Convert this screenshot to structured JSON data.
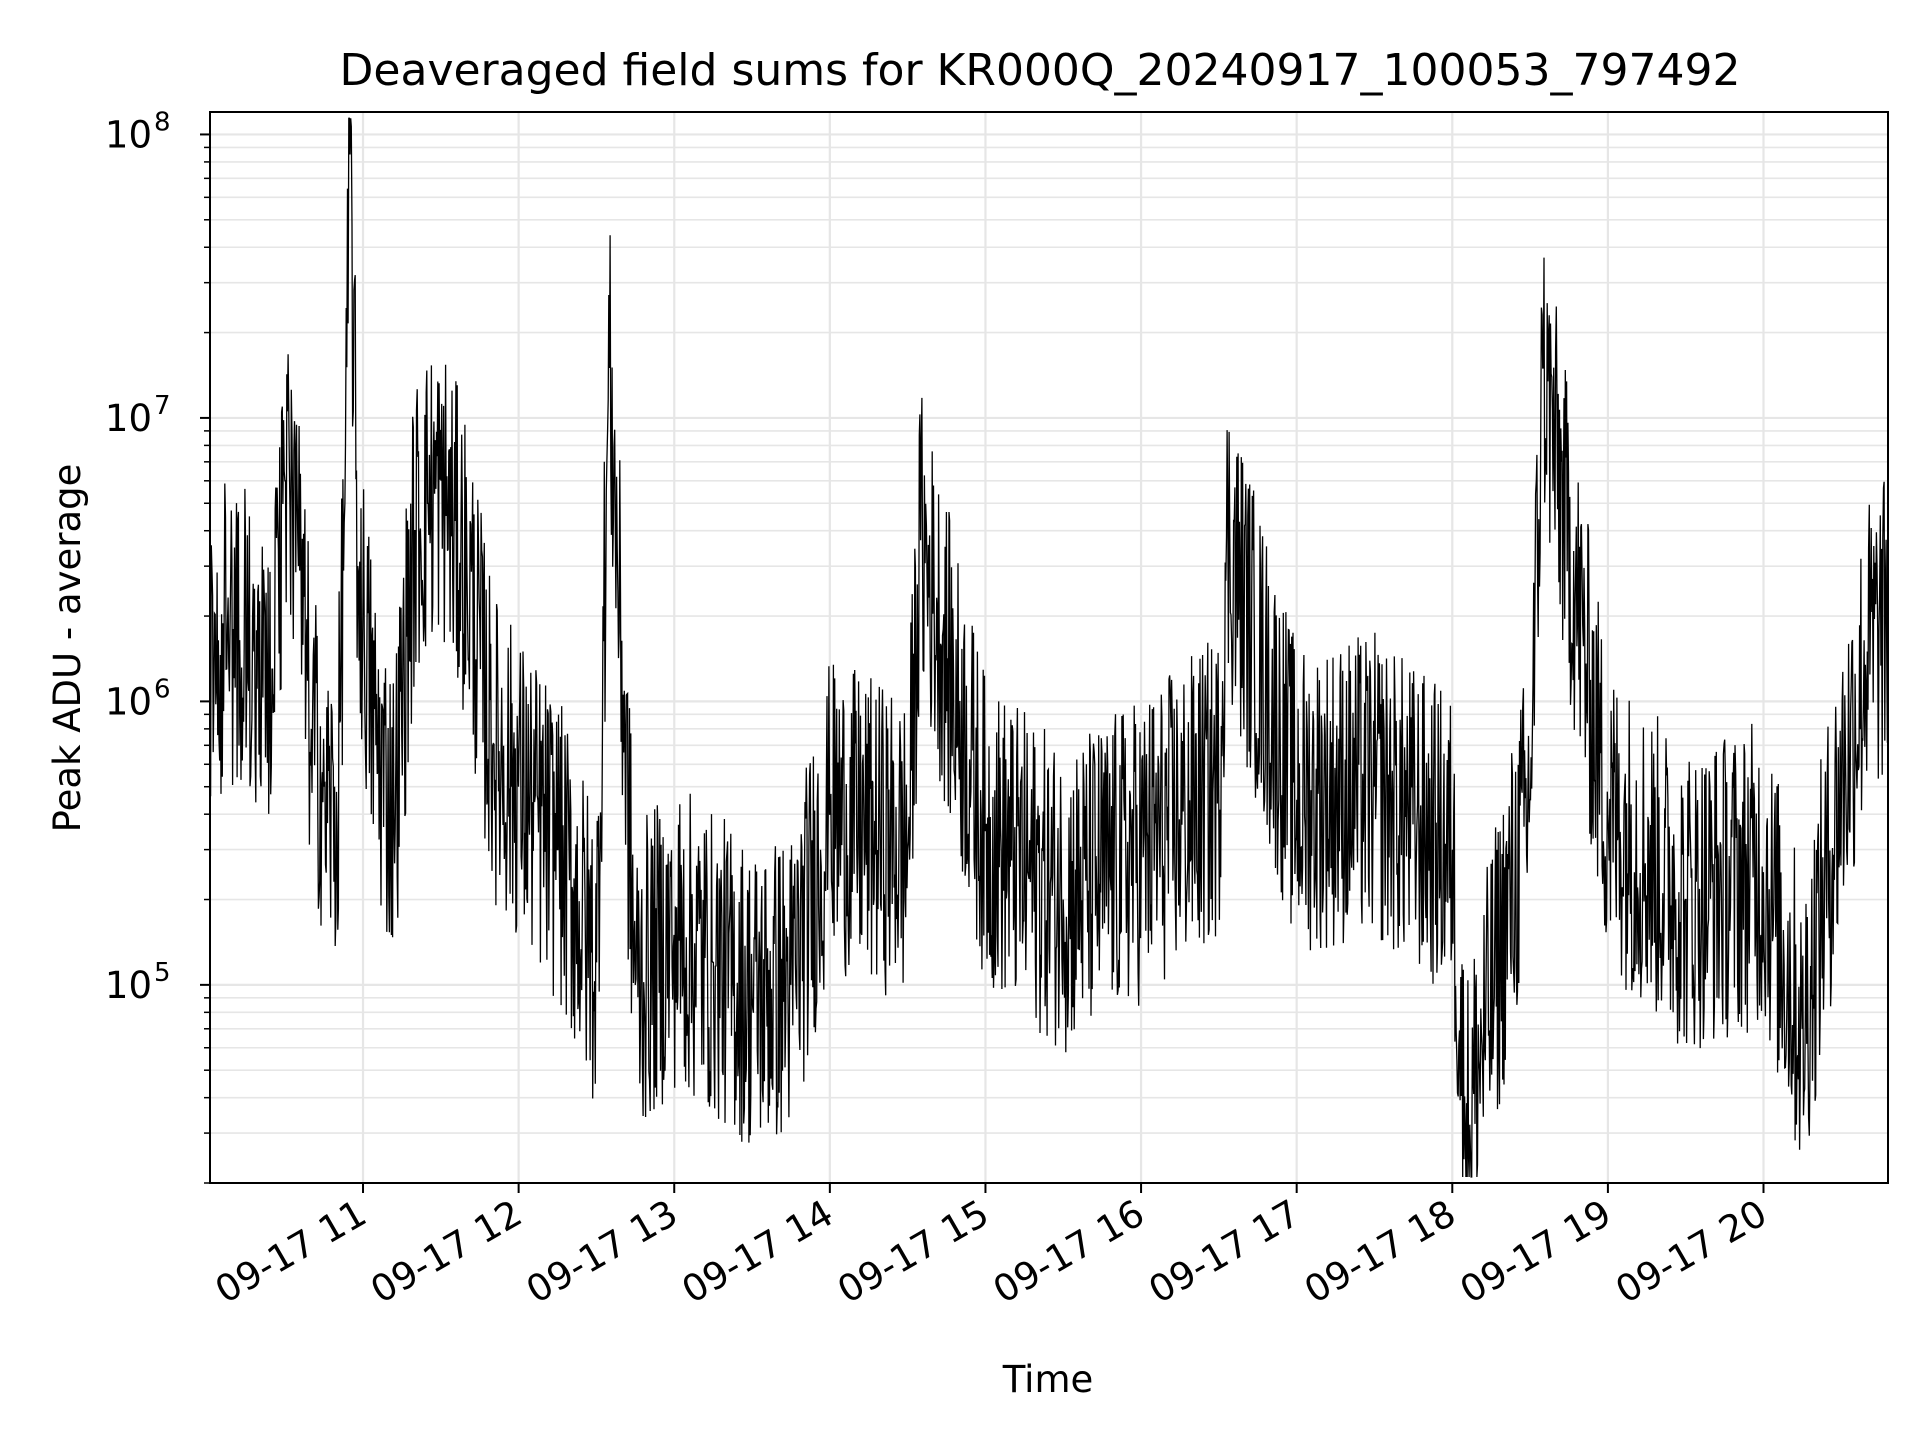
{
  "chart_data": {
    "type": "line",
    "title": "Deaveraged field sums for KR000Q_20240917_100053_797492",
    "xlabel": "Time",
    "ylabel": "Peak ADU - average",
    "yscale": "log",
    "grid": true,
    "ylim": [
      20000,
      120000000
    ],
    "xlim": [
      "2024-09-17 10:01",
      "2024-09-17 20:48"
    ],
    "x_ticks": [
      "09-17 11",
      "09-17 12",
      "09-17 13",
      "09-17 14",
      "09-17 15",
      "09-17 16",
      "09-17 17",
      "09-17 18",
      "09-17 19",
      "09-17 20"
    ],
    "y_ticks": [
      {
        "value": 100000,
        "base": "10",
        "exp": "5"
      },
      {
        "value": 1000000,
        "base": "10",
        "exp": "6"
      },
      {
        "value": 10000000,
        "base": "10",
        "exp": "7"
      },
      {
        "value": 100000000,
        "base": "10",
        "exp": "8"
      }
    ],
    "line_color": "#000000",
    "series": [
      {
        "x": [
          "2024-09-17 10:01",
          "2024-09-17 10:10",
          "2024-09-17 10:18",
          "2024-09-17 10:25",
          "2024-09-17 10:30",
          "2024-09-17 10:35",
          "2024-09-17 10:40",
          "2024-09-17 10:45",
          "2024-09-17 10:50",
          "2024-09-17 10:53",
          "2024-09-17 10:55",
          "2024-09-17 10:58",
          "2024-09-17 11:05",
          "2024-09-17 11:12",
          "2024-09-17 11:20",
          "2024-09-17 11:25",
          "2024-09-17 11:30",
          "2024-09-17 11:35",
          "2024-09-17 11:40",
          "2024-09-17 11:50",
          "2024-09-17 12:00",
          "2024-09-17 12:15",
          "2024-09-17 12:30",
          "2024-09-17 12:35",
          "2024-09-17 12:45",
          "2024-09-17 13:00",
          "2024-09-17 13:15",
          "2024-09-17 13:30",
          "2024-09-17 13:45",
          "2024-09-17 14:00",
          "2024-09-17 14:30",
          "2024-09-17 14:35",
          "2024-09-17 15:00",
          "2024-09-17 15:30",
          "2024-09-17 16:00",
          "2024-09-17 16:30",
          "2024-09-17 16:33",
          "2024-09-17 17:00",
          "2024-09-17 17:30",
          "2024-09-17 18:00",
          "2024-09-17 18:05",
          "2024-09-17 18:30",
          "2024-09-17 18:35",
          "2024-09-17 19:00",
          "2024-09-17 19:30",
          "2024-09-17 20:00",
          "2024-09-17 20:15",
          "2024-09-17 20:30",
          "2024-09-17 20:40",
          "2024-09-17 20:48"
        ],
        "values": [
          1500000,
          1800000,
          1500000,
          1300000,
          6000000,
          3000000,
          800000,
          500000,
          350000,
          5000000,
          85000000,
          3000000,
          700000,
          400000,
          4000000,
          5000000,
          6000000,
          4000000,
          3000000,
          700000,
          500000,
          300000,
          120000,
          15000000,
          100000,
          150000,
          120000,
          90000,
          100000,
          400000,
          300000,
          3700000,
          350000,
          200000,
          300000,
          500000,
          3800000,
          450000,
          500000,
          300000,
          30000,
          450000,
          15000000,
          400000,
          200000,
          250000,
          70000,
          500000,
          1500000,
          1800000
        ]
      }
    ]
  }
}
